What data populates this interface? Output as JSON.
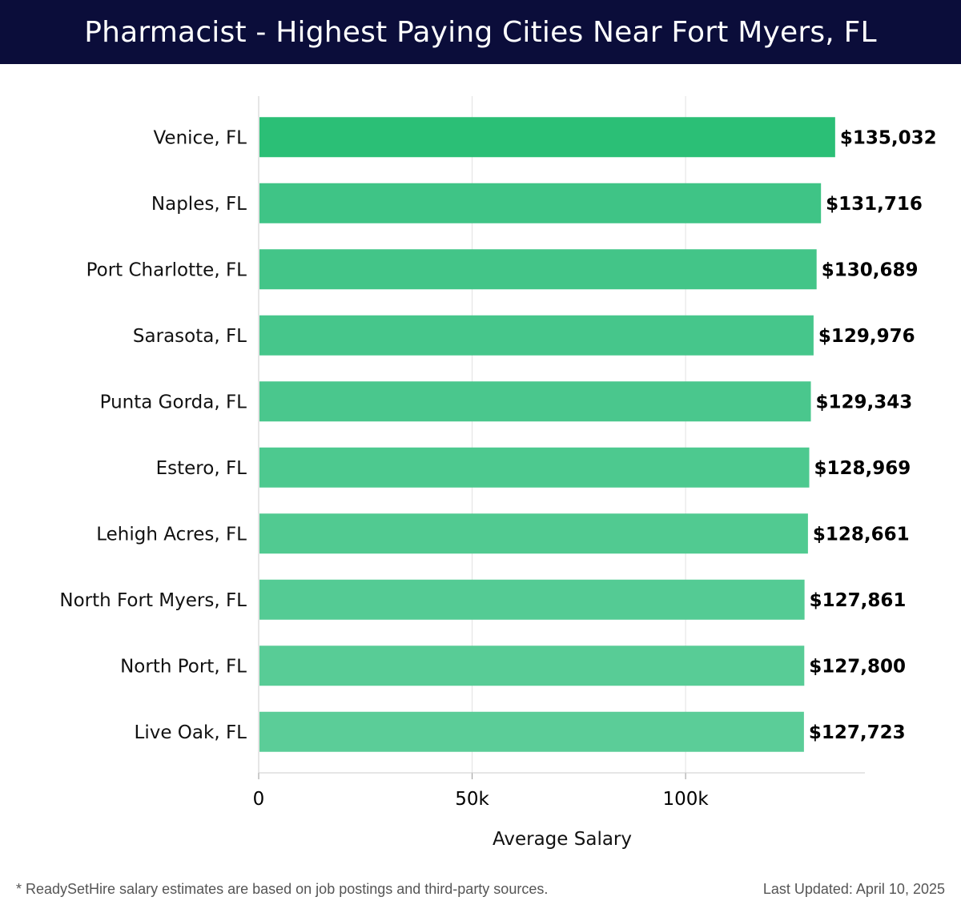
{
  "header": {
    "title": "Pharmacist - Highest Paying Cities Near Fort Myers, FL"
  },
  "chart_data": {
    "type": "bar",
    "orientation": "horizontal",
    "categories": [
      "Venice, FL",
      "Naples, FL",
      "Port Charlotte, FL",
      "Sarasota, FL",
      "Punta Gorda, FL",
      "Estero, FL",
      "Lehigh Acres, FL",
      "North Fort Myers, FL",
      "North Port, FL",
      "Live Oak, FL"
    ],
    "values": [
      135032,
      131716,
      130689,
      129976,
      129343,
      128969,
      128661,
      127861,
      127800,
      127723
    ],
    "value_labels": [
      "$135,032",
      "$131,716",
      "$130,689",
      "$129,976",
      "$129,343",
      "$128,969",
      "$128,661",
      "$127,861",
      "$127,800",
      "$127,723"
    ],
    "title": "",
    "xlabel": "Average Salary",
    "ylabel": "",
    "xlim": [
      0,
      142000
    ],
    "xticks": [
      0,
      50000,
      100000
    ],
    "xtick_labels": [
      "0",
      "50k",
      "100k"
    ],
    "grid": "vertical",
    "colors": {
      "top_bar": "#2bbf76",
      "bar_start": "#3fc486",
      "bar_end": "#5bcd98",
      "grid": "#e2e2e2"
    }
  },
  "footer": {
    "note": "* ReadySetHire salary estimates are based on job postings and third-party sources.",
    "updated": "Last Updated: April 10, 2025"
  }
}
